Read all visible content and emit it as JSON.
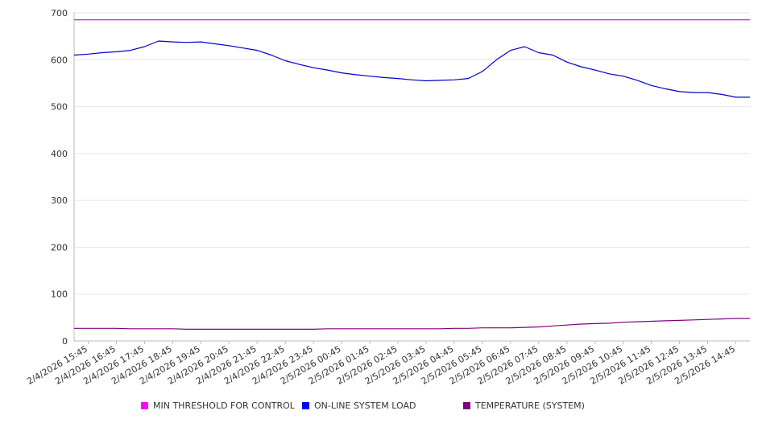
{
  "chart_data": {
    "type": "line",
    "title": "",
    "xlabel": "",
    "ylabel": "",
    "ylim": [
      0,
      700
    ],
    "y_ticks": [
      "0",
      "100",
      "200",
      "300",
      "400",
      "500",
      "600",
      "700"
    ],
    "grid": "horizontal",
    "legend_position": "bottom",
    "x_ticks": [
      "2/4/2026 15:45",
      "2/4/2026 16:45",
      "2/4/2026 17:45",
      "2/4/2026 18:45",
      "2/4/2026 19:45",
      "2/4/2026 20:45",
      "2/4/2026 21:45",
      "2/4/2026 22:45",
      "2/4/2026 23:45",
      "2/5/2026 00:45",
      "2/5/2026 01:45",
      "2/5/2026 02:45",
      "2/5/2026 03:45",
      "2/5/2026 04:45",
      "2/5/2026 05:45",
      "2/5/2026 06:45",
      "2/5/2026 07:45",
      "2/5/2026 08:45",
      "2/5/2026 09:45",
      "2/5/2026 10:45",
      "2/5/2026 11:45",
      "2/5/2026 12:45",
      "2/5/2026 13:45",
      "2/5/2026 14:45"
    ],
    "x": [
      "2/4/2026 15:15",
      "2/4/2026 15:45",
      "2/4/2026 16:15",
      "2/4/2026 16:45",
      "2/4/2026 17:15",
      "2/4/2026 17:45",
      "2/4/2026 18:15",
      "2/4/2026 18:45",
      "2/4/2026 19:15",
      "2/4/2026 19:45",
      "2/4/2026 20:15",
      "2/4/2026 20:45",
      "2/4/2026 21:15",
      "2/4/2026 21:45",
      "2/4/2026 22:15",
      "2/4/2026 22:45",
      "2/4/2026 23:15",
      "2/4/2026 23:45",
      "2/5/2026 00:15",
      "2/5/2026 00:45",
      "2/5/2026 01:15",
      "2/5/2026 01:45",
      "2/5/2026 02:15",
      "2/5/2026 02:45",
      "2/5/2026 03:15",
      "2/5/2026 03:45",
      "2/5/2026 04:15",
      "2/5/2026 04:45",
      "2/5/2026 05:15",
      "2/5/2026 05:45",
      "2/5/2026 06:15",
      "2/5/2026 06:45",
      "2/5/2026 07:15",
      "2/5/2026 07:45",
      "2/5/2026 08:15",
      "2/5/2026 08:45",
      "2/5/2026 09:15",
      "2/5/2026 09:45",
      "2/5/2026 10:15",
      "2/5/2026 10:45",
      "2/5/2026 11:15",
      "2/5/2026 11:45",
      "2/5/2026 12:15",
      "2/5/2026 12:45",
      "2/5/2026 13:15",
      "2/5/2026 13:45",
      "2/5/2026 14:15",
      "2/5/2026 14:45",
      "2/5/2026 15:15"
    ],
    "series": [
      {
        "name": "MIN THRESHOLD FOR CONTROL",
        "color": "#cc00cc",
        "values": [
          685,
          685,
          685,
          685,
          685,
          685,
          685,
          685,
          685,
          685,
          685,
          685,
          685,
          685,
          685,
          685,
          685,
          685,
          685,
          685,
          685,
          685,
          685,
          685,
          685,
          685,
          685,
          685,
          685,
          685,
          685,
          685,
          685,
          685,
          685,
          685,
          685,
          685,
          685,
          685,
          685,
          685,
          685,
          685,
          685,
          685,
          685,
          685,
          685
        ]
      },
      {
        "name": "ON-LINE SYSTEM LOAD",
        "color": "#0000cc",
        "values": [
          610,
          612,
          615,
          617,
          620,
          628,
          640,
          638,
          637,
          638,
          634,
          630,
          625,
          620,
          610,
          598,
          590,
          583,
          578,
          572,
          568,
          565,
          562,
          560,
          557,
          555,
          556,
          557,
          560,
          575,
          600,
          620,
          628,
          615,
          610,
          595,
          585,
          578,
          570,
          565,
          556,
          545,
          538,
          532,
          530,
          530,
          526,
          520,
          520
        ]
      },
      {
        "name": "TEMPERATURE (SYSTEM)",
        "color": "#800080",
        "values": [
          27,
          27,
          27,
          27,
          26,
          26,
          26,
          26,
          25,
          25,
          25,
          25,
          25,
          25,
          25,
          25,
          25,
          25,
          26,
          26,
          26,
          26,
          26,
          26,
          26,
          26,
          26,
          27,
          27,
          28,
          28,
          28,
          29,
          30,
          32,
          34,
          36,
          37,
          38,
          40,
          41,
          42,
          43,
          44,
          45,
          46,
          47,
          48,
          48
        ]
      }
    ]
  }
}
